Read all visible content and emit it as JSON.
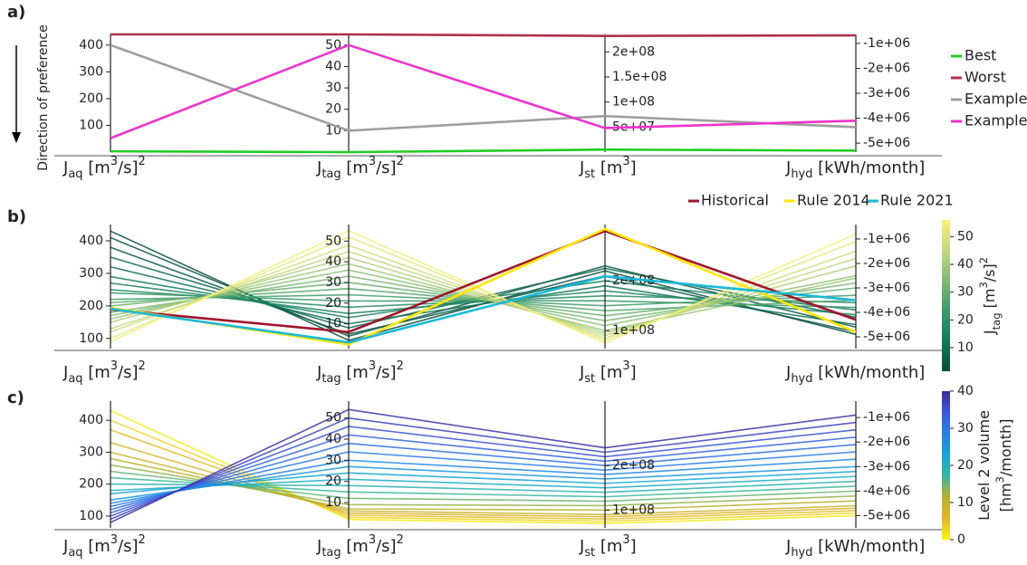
{
  "chart_data": [
    {
      "type": "parallel",
      "panel": "a)",
      "y_label": "Direction of preference",
      "legend": "right",
      "axes": [
        {
          "label": [
            {
              "t": "J"
            },
            {
              "sub": "aq"
            },
            {
              "t": " [m"
            },
            {
              "sup": "3"
            },
            {
              "t": "/s]"
            },
            {
              "sup": "2"
            }
          ],
          "ylim": [
            0,
            440
          ],
          "yticks": [
            100,
            200,
            300,
            400
          ]
        },
        {
          "label": [
            {
              "t": "J"
            },
            {
              "sub": "tag"
            },
            {
              "t": " [m"
            },
            {
              "sup": "3"
            },
            {
              "t": "/s]"
            },
            {
              "sup": "2"
            }
          ],
          "ylim": [
            0,
            55
          ],
          "yticks": [
            10,
            20,
            30,
            40,
            50
          ]
        },
        {
          "label": [
            {
              "t": "J"
            },
            {
              "sub": "st"
            },
            {
              "t": " [m"
            },
            {
              "sup": "3"
            },
            {
              "t": "]"
            }
          ],
          "ylim": [
            0,
            235000000
          ],
          "yticks": [
            {
              "value": 50000000,
              "label": "5e+07"
            },
            {
              "value": 100000000,
              "label": "1e+08"
            },
            {
              "value": 150000000,
              "label": "1.5e+08"
            },
            {
              "value": 200000000,
              "label": "2e+08"
            }
          ]
        },
        {
          "label": [
            {
              "t": "J"
            },
            {
              "sub": "hyd"
            },
            {
              "t": " [kWh/month]"
            }
          ],
          "ylim": [
            -5360000,
            -640000
          ],
          "yticks": [
            {
              "value": -5000000,
              "label": "-5e+06"
            },
            {
              "value": -4000000,
              "label": "-4e+06"
            },
            {
              "value": -3000000,
              "label": "-3e+06"
            },
            {
              "value": -2000000,
              "label": "-2e+06"
            },
            {
              "value": -1000000,
              "label": "-1e+06"
            }
          ]
        }
      ],
      "series": [
        {
          "name": "Best",
          "color": "#22cc22",
          "values": [
            3,
            0,
            5000000,
            -5300000
          ]
        },
        {
          "name": "Worst",
          "color": "#b0304a",
          "values": [
            440,
            55,
            232000000,
            -680000
          ]
        },
        {
          "name": "Example a",
          "color": "#9e9e9e",
          "values": [
            400,
            10,
            72000000,
            -4360000
          ]
        },
        {
          "name": "Example b",
          "color": "#ee33cc",
          "values": [
            52,
            50,
            48000000,
            -4100000
          ]
        }
      ]
    },
    {
      "type": "parallel",
      "panel": "b)",
      "legend": "top",
      "axes": [
        {
          "label": [
            {
              "t": "J"
            },
            {
              "sub": "aq"
            },
            {
              "t": " [m"
            },
            {
              "sup": "3"
            },
            {
              "t": "/s]"
            },
            {
              "sup": "2"
            }
          ],
          "ylim": [
            69,
            450
          ],
          "yticks": [
            100,
            200,
            300,
            400
          ]
        },
        {
          "label": [
            {
              "t": "J"
            },
            {
              "sub": "tag"
            },
            {
              "t": " [m"
            },
            {
              "sup": "3"
            },
            {
              "t": "/s]"
            },
            {
              "sup": "2"
            }
          ],
          "ylim": [
            -2,
            58
          ],
          "yticks": [
            10,
            20,
            30,
            40,
            50
          ]
        },
        {
          "label": [
            {
              "t": "J"
            },
            {
              "sub": "st"
            },
            {
              "t": " [m"
            },
            {
              "sup": "3"
            },
            {
              "t": "]"
            }
          ],
          "ylim": [
            64000000,
            313000000
          ],
          "yticks": [
            {
              "value": 100000000,
              "label": "1e+08"
            },
            {
              "value": 200000000,
              "label": "2e+08"
            }
          ]
        },
        {
          "label": [
            {
              "t": "J"
            },
            {
              "sub": "hyd"
            },
            {
              "t": " [kWh/month]"
            }
          ],
          "ylim": [
            -5480000,
            -410000
          ],
          "yticks": [
            {
              "value": -5000000,
              "label": "-5e+06"
            },
            {
              "value": -4000000,
              "label": "-4e+06"
            },
            {
              "value": -3000000,
              "label": "-3e+06"
            },
            {
              "value": -2000000,
              "label": "-2e+06"
            },
            {
              "value": -1000000,
              "label": "-1e+06"
            }
          ]
        }
      ],
      "color_axis": 1,
      "colorbar": {
        "label": [
          {
            "t": "J"
          },
          {
            "sub": "tag"
          },
          {
            "t": " [m"
          },
          {
            "sup": "3"
          },
          {
            "t": "/s]"
          },
          {
            "sup": "2"
          }
        ],
        "clim": [
          1.5,
          56
        ],
        "ticks": [
          10,
          20,
          30,
          40,
          50
        ],
        "colormap": [
          "#0b4d3e",
          "#0f7a5a",
          "#3c9b6a",
          "#80bb74",
          "#c3d77e",
          "#f8f07a"
        ]
      },
      "lines": [
        [
          430,
          2,
          220000000,
          -4900000
        ],
        [
          410,
          4,
          230000000,
          -4600000
        ],
        [
          380,
          5,
          210000000,
          -4800000
        ],
        [
          350,
          8,
          225000000,
          -4200000
        ],
        [
          320,
          10,
          190000000,
          -4500000
        ],
        [
          290,
          13,
          200000000,
          -3900000
        ],
        [
          270,
          15,
          180000000,
          -4100000
        ],
        [
          250,
          18,
          170000000,
          -3600000
        ],
        [
          240,
          21,
          160000000,
          -3800000
        ],
        [
          220,
          24,
          150000000,
          -3300000
        ],
        [
          210,
          27,
          140000000,
          -3500000
        ],
        [
          200,
          30,
          130000000,
          -3000000
        ],
        [
          180,
          33,
          120000000,
          -2800000
        ],
        [
          170,
          36,
          110000000,
          -2500000
        ],
        [
          160,
          39,
          100000000,
          -2600000
        ],
        [
          150,
          42,
          95000000,
          -2100000
        ],
        [
          130,
          45,
          90000000,
          -1800000
        ],
        [
          120,
          48,
          85000000,
          -1500000
        ],
        [
          100,
          52,
          80000000,
          -1100000
        ],
        [
          90,
          55,
          75000000,
          -800000
        ]
      ],
      "series": [
        {
          "name": "Historical",
          "color": "#a0142c",
          "values": [
            189,
            6,
            300000000,
            -4300000
          ]
        },
        {
          "name": "Rule 2014",
          "color": "#ffe600",
          "values": [
            194,
            0,
            304000000,
            -4800000
          ]
        },
        {
          "name": "Rule 2021",
          "color": "#1ab8d8",
          "values": [
            191,
            1,
            209000000,
            -3500000
          ]
        }
      ]
    },
    {
      "type": "parallel",
      "panel": "c)",
      "axes": [
        {
          "label": [
            {
              "t": "J"
            },
            {
              "sub": "aq"
            },
            {
              "t": " [m"
            },
            {
              "sup": "3"
            },
            {
              "t": "/s]"
            },
            {
              "sup": "2"
            }
          ],
          "ylim": [
            63,
            460
          ],
          "yticks": [
            100,
            200,
            300,
            400
          ]
        },
        {
          "label": [
            {
              "t": "J"
            },
            {
              "sub": "tag"
            },
            {
              "t": " [m"
            },
            {
              "sup": "3"
            },
            {
              "t": "/s]"
            },
            {
              "sup": "2"
            }
          ],
          "ylim": [
            -2,
            58
          ],
          "yticks": [
            10,
            20,
            30,
            40,
            50
          ]
        },
        {
          "label": [
            {
              "t": "J"
            },
            {
              "sub": "st"
            },
            {
              "t": " [m"
            },
            {
              "sup": "3"
            },
            {
              "t": "]"
            }
          ],
          "ylim": [
            60000000,
            345000000
          ],
          "yticks": [
            {
              "value": 100000000,
              "label": "1e+08"
            },
            {
              "value": 200000000,
              "label": "2e+08"
            }
          ]
        },
        {
          "label": [
            {
              "t": "J"
            },
            {
              "sub": "hyd"
            },
            {
              "t": " [kWh/month]"
            }
          ],
          "ylim": [
            -5500000,
            -330000
          ],
          "yticks": [
            {
              "value": -5000000,
              "label": "-5e+06"
            },
            {
              "value": -4000000,
              "label": "-4e+06"
            },
            {
              "value": -3000000,
              "label": "-3e+06"
            },
            {
              "value": -2000000,
              "label": "-2e+06"
            },
            {
              "value": -1000000,
              "label": "-1e+06"
            }
          ]
        }
      ],
      "colorbar": {
        "label": [
          {
            "t": "Level 2 volume"
          },
          {
            "t": "[hm"
          },
          {
            "sup": "3"
          },
          {
            "t": "/month]"
          }
        ],
        "clim": [
          0,
          40
        ],
        "ticks": [
          0,
          10,
          20,
          30,
          40
        ],
        "colormap": [
          "#f9f50e",
          "#e3b42c",
          "#b7b22a",
          "#36b79e",
          "#12a5d6",
          "#2680e6",
          "#3a58e0",
          "#3d2a9c"
        ]
      },
      "lines": [
        [
          430,
          2,
          70000000,
          -5000000
        ],
        [
          400,
          3,
          75000000,
          -4900000
        ],
        [
          370,
          4,
          80000000,
          -4800000
        ],
        [
          330,
          5,
          85000000,
          -4700000
        ],
        [
          300,
          6,
          90000000,
          -4600000
        ],
        [
          280,
          7,
          100000000,
          -4400000
        ],
        [
          260,
          9,
          110000000,
          -4200000
        ],
        [
          240,
          12,
          120000000,
          -4000000
        ],
        [
          220,
          15,
          130000000,
          -3800000
        ],
        [
          200,
          18,
          140000000,
          -3600000
        ],
        [
          180,
          21,
          150000000,
          -3400000
        ],
        [
          170,
          24,
          160000000,
          -3200000
        ],
        [
          150,
          27,
          170000000,
          -3000000
        ],
        [
          140,
          30,
          180000000,
          -2700000
        ],
        [
          130,
          34,
          190000000,
          -2400000
        ],
        [
          120,
          38,
          200000000,
          -2100000
        ],
        [
          110,
          42,
          210000000,
          -1800000
        ],
        [
          100,
          46,
          220000000,
          -1500000
        ],
        [
          90,
          50,
          230000000,
          -1200000
        ],
        [
          80,
          54,
          240000000,
          -900000
        ]
      ],
      "color_values": [
        1,
        3,
        5,
        7,
        9,
        11,
        13,
        15,
        17,
        19,
        21,
        23,
        25,
        27,
        29,
        31,
        33,
        35,
        37,
        39
      ]
    }
  ]
}
